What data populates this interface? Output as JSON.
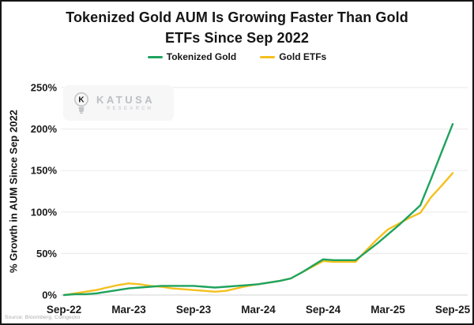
{
  "title": {
    "line1": "Tokenized Gold AUM Is Growing Faster Than Gold",
    "line2": "ETFs Since Sep 2022"
  },
  "legend": [
    {
      "label": "Tokenized Gold",
      "color": "#1fa35e"
    },
    {
      "label": "Gold ETFs",
      "color": "#f5c01e"
    }
  ],
  "watermark": {
    "brand": "KATUSA",
    "sub": "RESEARCH",
    "icon": "lightbulb-k-icon"
  },
  "source_note": "Source: Bloomberg, Coingecko",
  "colors": {
    "tokenized_gold_line": "#1fa35e",
    "gold_etfs_line": "#f5c01e",
    "gridline": "#ececec",
    "zero_line": "#dcdcdc",
    "text": "#1a1a1a",
    "watermark_bg": "#f7f7f8"
  },
  "chart_data": {
    "type": "line",
    "title": "Tokenized Gold AUM Is Growing Faster Than Gold ETFs Since Sep 2022",
    "xlabel": "",
    "ylabel": "% Growth in AUM Since Sep 2022",
    "unit": "%",
    "ylim": [
      0,
      250
    ],
    "ytick_values": [
      0,
      50,
      100,
      150,
      200,
      250
    ],
    "ytick_labels": [
      "0%",
      "50%",
      "100%",
      "150%",
      "200%",
      "250%"
    ],
    "xtick_labels": [
      "Sep-22",
      "Mar-23",
      "Sep-23",
      "Mar-24",
      "Sep-24",
      "Mar-25",
      "Sep-25"
    ],
    "grid": "horizontal",
    "legend_position": "top-center",
    "x": [
      "Sep-22",
      "Oct-22",
      "Nov-22",
      "Dec-22",
      "Jan-23",
      "Feb-23",
      "Mar-23",
      "Apr-23",
      "May-23",
      "Jun-23",
      "Jul-23",
      "Aug-23",
      "Sep-23",
      "Oct-23",
      "Nov-23",
      "Dec-23",
      "Jan-24",
      "Feb-24",
      "Mar-24",
      "Apr-24",
      "May-24",
      "Jun-24",
      "Jul-24",
      "Aug-24",
      "Sep-24",
      "Oct-24",
      "Nov-24",
      "Dec-24",
      "Jan-25",
      "Feb-25",
      "Mar-25",
      "Apr-25",
      "May-25",
      "Jun-25",
      "Jul-25",
      "Aug-25",
      "Sep-25"
    ],
    "series": [
      {
        "name": "Tokenized Gold",
        "color": "#1fa35e",
        "values": [
          0,
          1,
          1,
          2,
          4,
          6,
          8,
          9,
          10,
          11,
          11,
          11,
          11,
          10,
          9,
          10,
          11,
          12,
          13,
          15,
          17,
          20,
          27,
          35,
          43,
          42,
          42,
          42,
          52,
          62,
          73,
          84,
          96,
          108,
          140,
          173,
          206
        ]
      },
      {
        "name": "Gold ETFs",
        "color": "#f5c01e",
        "values": [
          0,
          2,
          4,
          6,
          9,
          12,
          14,
          13,
          11,
          10,
          8,
          7,
          6,
          5,
          4,
          5,
          8,
          11,
          13,
          15,
          17,
          20,
          27,
          34,
          41,
          40,
          40,
          40,
          54,
          67,
          79,
          86,
          93,
          99,
          118,
          132,
          147
        ]
      }
    ]
  }
}
